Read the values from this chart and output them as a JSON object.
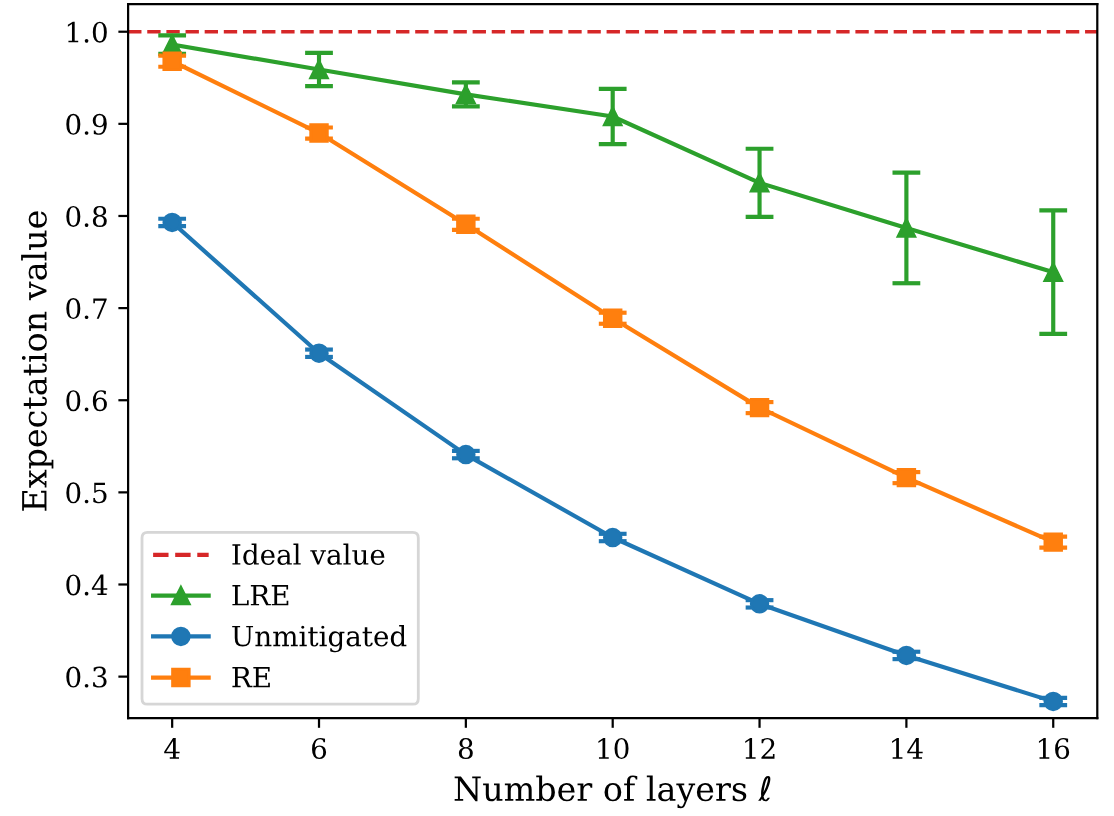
{
  "chart_data": {
    "type": "line",
    "xlabel": "Number of layers ℓ",
    "ylabel": "Expectation value",
    "x": [
      4,
      6,
      8,
      10,
      12,
      14,
      16
    ],
    "series": [
      {
        "name": "LRE",
        "color": "#2ca02c",
        "marker": "triangle",
        "values": [
          0.986,
          0.959,
          0.932,
          0.908,
          0.836,
          0.787,
          0.739
        ],
        "errors": [
          0.01,
          0.018,
          0.013,
          0.03,
          0.037,
          0.06,
          0.067
        ]
      },
      {
        "name": "Unmitigated",
        "color": "#1f77b4",
        "marker": "circle",
        "values": [
          0.793,
          0.651,
          0.541,
          0.451,
          0.379,
          0.323,
          0.273
        ],
        "errors": [
          0.004,
          0.004,
          0.004,
          0.004,
          0.004,
          0.004,
          0.004
        ]
      },
      {
        "name": "RE",
        "color": "#ff7f0e",
        "marker": "square",
        "values": [
          0.968,
          0.89,
          0.791,
          0.689,
          0.592,
          0.516,
          0.446
        ],
        "errors": [
          0.006,
          0.006,
          0.006,
          0.006,
          0.006,
          0.006,
          0.006
        ]
      }
    ],
    "ref_lines": [
      {
        "axis": "y",
        "value": 1.0,
        "label": "Ideal value",
        "color": "#d62728",
        "line_style": "dashed"
      }
    ],
    "xlim": [
      3.4,
      16.6
    ],
    "ylim": [
      0.255,
      1.03
    ],
    "xticks": [
      4,
      6,
      8,
      10,
      12,
      14,
      16
    ],
    "yticks": [
      0.3,
      0.4,
      0.5,
      0.6,
      0.7,
      0.8,
      0.9,
      {
        "value": 1.0,
        "label": "1.0"
      }
    ],
    "grid": false,
    "legend": "bottom left"
  }
}
